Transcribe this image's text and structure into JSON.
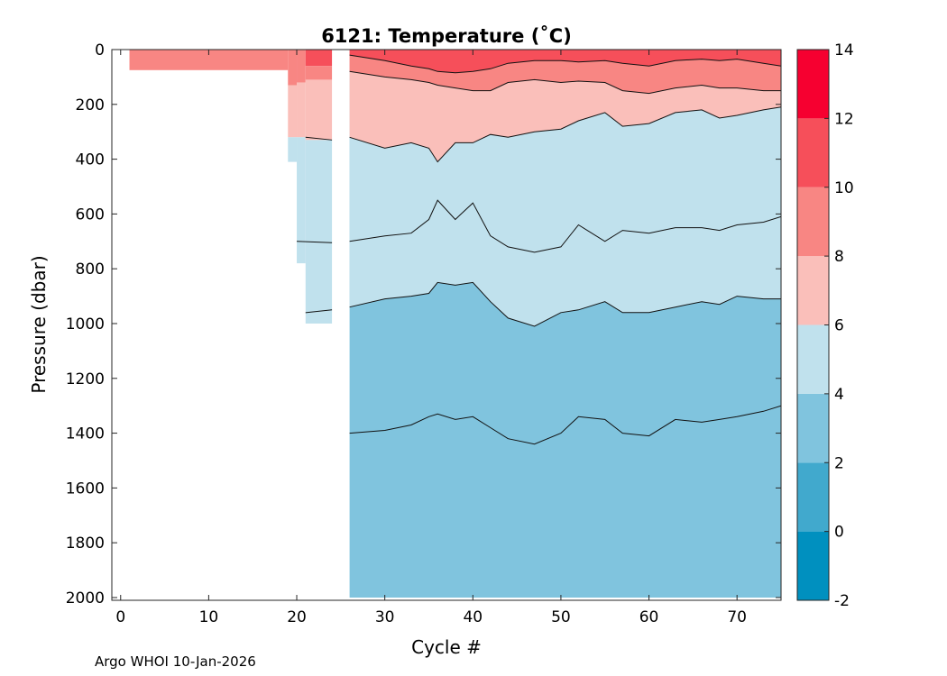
{
  "chart_data": {
    "type": "heatmap",
    "title": "6121:  Temperature (˚C)",
    "xlabel": "Cycle #",
    "ylabel": "Pressure (dbar)",
    "xlim": [
      -1,
      75
    ],
    "ylim": [
      0,
      2010
    ],
    "y_reversed": true,
    "xticks": [
      0,
      10,
      20,
      30,
      40,
      50,
      60,
      70
    ],
    "yticks": [
      0,
      200,
      400,
      600,
      800,
      1000,
      1200,
      1400,
      1600,
      1800,
      2000
    ],
    "colorbar": {
      "levels": [
        -2,
        0,
        2,
        4,
        6,
        8,
        10,
        12,
        14
      ],
      "colors": [
        "#0090bf",
        "#41a9cd",
        "#80c4de",
        "#c0e1ed",
        "#fabfba",
        "#f88683",
        "#f64f5a",
        "#f60030"
      ],
      "ticks": [
        -2,
        0,
        2,
        4,
        6,
        8,
        10,
        12,
        14
      ]
    },
    "isotherm_depths": {
      "cycles": [
        26,
        30,
        33,
        35,
        36,
        38,
        40,
        42,
        44,
        47,
        50,
        52,
        55,
        57,
        60,
        63,
        66,
        68,
        70,
        73,
        75
      ],
      "t10_dbar": [
        20,
        40,
        60,
        70,
        80,
        85,
        80,
        70,
        50,
        40,
        40,
        45,
        40,
        50,
        60,
        40,
        35,
        40,
        35,
        50,
        60
      ],
      "t8_dbar": [
        80,
        100,
        110,
        120,
        130,
        140,
        150,
        150,
        120,
        110,
        120,
        115,
        120,
        150,
        160,
        140,
        130,
        140,
        140,
        150,
        150
      ],
      "t6_dbar": [
        320,
        360,
        340,
        360,
        410,
        340,
        340,
        310,
        320,
        300,
        290,
        260,
        230,
        280,
        270,
        230,
        220,
        250,
        240,
        220,
        210
      ],
      "t4_dbar": [
        700,
        680,
        670,
        620,
        550,
        620,
        560,
        680,
        720,
        740,
        720,
        640,
        700,
        660,
        670,
        650,
        650,
        660,
        640,
        630,
        610
      ],
      "t3_dbar": [
        940,
        910,
        900,
        890,
        850,
        860,
        850,
        920,
        980,
        1010,
        960,
        950,
        920,
        960,
        960,
        940,
        920,
        930,
        900,
        910,
        910
      ],
      "t2_5_dbar": [
        1400,
        1390,
        1370,
        1340,
        1330,
        1350,
        1340,
        1380,
        1420,
        1440,
        1400,
        1340,
        1350,
        1400,
        1410,
        1350,
        1360,
        1350,
        1340,
        1320,
        1300
      ]
    },
    "early_profiles": {
      "cycles_1_18_max_dbar": 75,
      "cycle_19_max_dbar": 410,
      "cycle_20_max_dbar": 780,
      "cycles_21_23_max_dbar": 1000,
      "gap_cycles": [
        24,
        25
      ]
    }
  },
  "footer": "Argo WHOI 10-Jan-2026"
}
